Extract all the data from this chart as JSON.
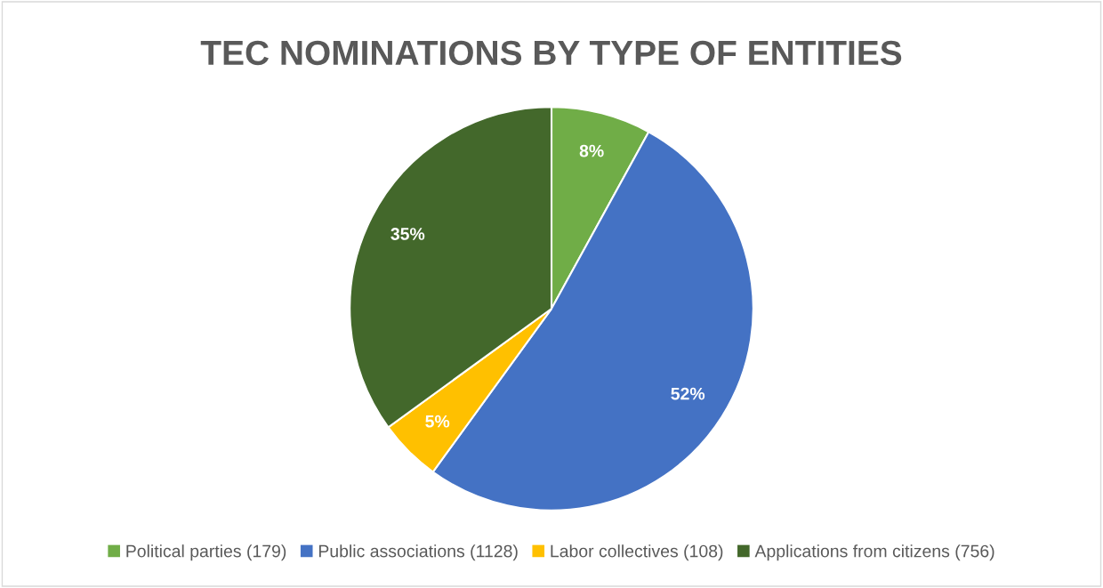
{
  "chart_data": {
    "type": "pie",
    "title": "TEC NOMINATIONS BY TYPE OF ENTITIES",
    "categories": [
      "Political parties (179)",
      "Public associations (1128)",
      "Labor collectives (108)",
      "Applications from citizens (756)"
    ],
    "values": [
      8,
      52,
      5,
      35
    ],
    "colors": [
      "#70ad47",
      "#4472c4",
      "#ffc000",
      "#43682b"
    ],
    "value_labels": [
      "8%",
      "52%",
      "5%",
      "35%"
    ],
    "legend": "bottom"
  }
}
